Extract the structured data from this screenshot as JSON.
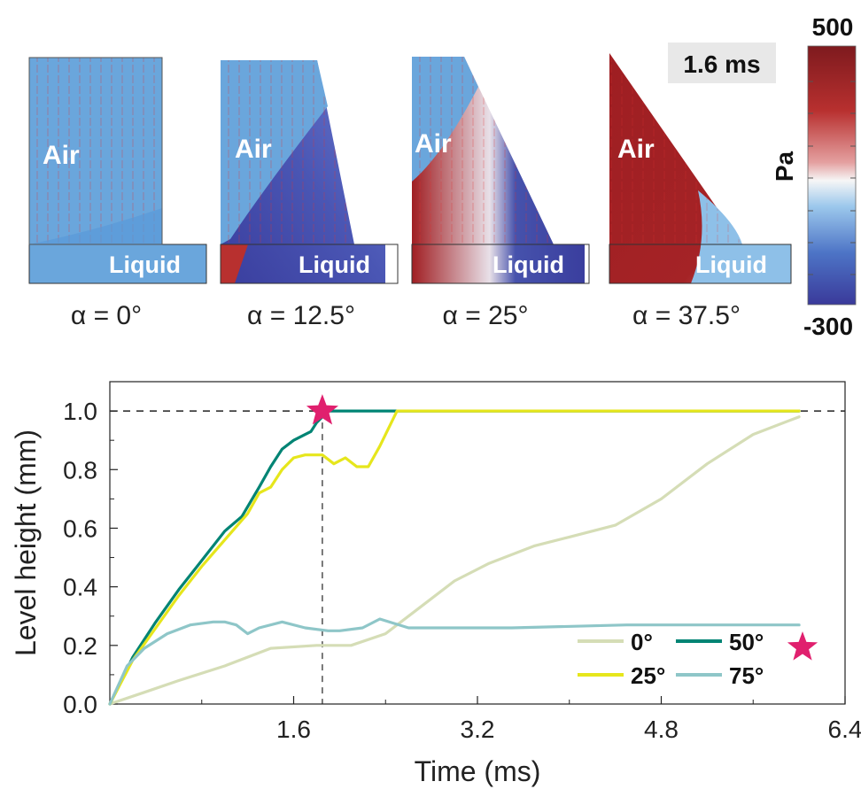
{
  "panels": [
    {
      "region_top": "Air",
      "region_bottom": "Liquid",
      "caption": "α = 0°"
    },
    {
      "region_top": "Air",
      "region_bottom": "Liquid",
      "caption": "α = 12.5°"
    },
    {
      "region_top": "Air",
      "region_bottom": "Liquid",
      "caption": "α = 25°"
    },
    {
      "region_top": "Air",
      "region_bottom": "Liquid",
      "caption": "α = 37.5°"
    }
  ],
  "time_badge": "1.6 ms",
  "colorbar": {
    "max_label": "500",
    "min_label": "-300",
    "unit": "Pa",
    "colors": [
      "#8a1a1f",
      "#c83a3a",
      "#f2f2f2",
      "#5aa0dc",
      "#3a3a9a"
    ]
  },
  "colors": {
    "air_blue": "#6aa6dc",
    "pressure_high": "#a02024",
    "pressure_low": "#3a3e9e",
    "vector_red": "#e03030"
  },
  "chart_data": {
    "type": "line",
    "xlabel": "Time (ms)",
    "ylabel": "Level height (mm)",
    "xlim": [
      0,
      6.4
    ],
    "ylim": [
      0,
      1.1
    ],
    "xticks": [
      "1.6",
      "3.2",
      "4.8",
      "6.4"
    ],
    "yticks": [
      "0.0",
      "0.2",
      "0.4",
      "0.6",
      "0.8",
      "1.0"
    ],
    "grid": false,
    "legend_position": "bottom-right",
    "reference_line_y": 1.0,
    "reference_line_x": 1.85,
    "star_marker": {
      "x": 1.85,
      "y": 1.0,
      "color": "#e0206e"
    },
    "legend_star_color": "#e0206e",
    "series": [
      {
        "name": "0°",
        "color": "#d5ddb6",
        "x": [
          0,
          0.3,
          0.6,
          1.0,
          1.4,
          1.8,
          2.1,
          2.4,
          2.7,
          3.0,
          3.3,
          3.7,
          4.0,
          4.4,
          4.8,
          5.2,
          5.6,
          6.0
        ],
        "y": [
          0,
          0.04,
          0.08,
          0.13,
          0.19,
          0.2,
          0.2,
          0.24,
          0.33,
          0.42,
          0.48,
          0.54,
          0.57,
          0.61,
          0.7,
          0.82,
          0.92,
          0.98
        ]
      },
      {
        "name": "50°",
        "color": "#008474",
        "x": [
          0,
          0.2,
          0.4,
          0.6,
          0.8,
          1.0,
          1.15,
          1.3,
          1.4,
          1.5,
          1.6,
          1.7,
          1.75,
          1.8,
          1.85,
          1.9,
          2.5,
          3.5,
          4.5,
          5.5,
          6.0
        ],
        "y": [
          0,
          0.16,
          0.28,
          0.39,
          0.49,
          0.59,
          0.64,
          0.74,
          0.81,
          0.87,
          0.9,
          0.92,
          0.93,
          0.96,
          0.98,
          1.0,
          1.0,
          1.0,
          1.0,
          1.0,
          1.0
        ]
      },
      {
        "name": "25°",
        "color": "#e6e61c",
        "x": [
          0,
          0.2,
          0.4,
          0.6,
          0.8,
          1.0,
          1.2,
          1.3,
          1.4,
          1.5,
          1.6,
          1.7,
          1.85,
          1.95,
          2.05,
          2.15,
          2.25,
          2.35,
          2.5,
          2.9,
          3.5,
          4.5,
          5.5,
          6.0
        ],
        "y": [
          0,
          0.15,
          0.26,
          0.37,
          0.47,
          0.56,
          0.65,
          0.72,
          0.74,
          0.8,
          0.84,
          0.85,
          0.85,
          0.82,
          0.84,
          0.81,
          0.81,
          0.88,
          1.0,
          1.0,
          1.0,
          1.0,
          1.0,
          1.0
        ]
      },
      {
        "name": "75°",
        "color": "#8ec6c8",
        "x": [
          0,
          0.15,
          0.3,
          0.5,
          0.7,
          0.9,
          1.0,
          1.1,
          1.2,
          1.3,
          1.5,
          1.7,
          1.9,
          2.0,
          2.2,
          2.35,
          2.6,
          3.0,
          3.5,
          4.5,
          5.5,
          6.0
        ],
        "y": [
          0,
          0.13,
          0.19,
          0.24,
          0.27,
          0.28,
          0.28,
          0.27,
          0.24,
          0.26,
          0.28,
          0.26,
          0.25,
          0.25,
          0.26,
          0.29,
          0.26,
          0.26,
          0.26,
          0.27,
          0.27,
          0.27
        ]
      }
    ]
  }
}
